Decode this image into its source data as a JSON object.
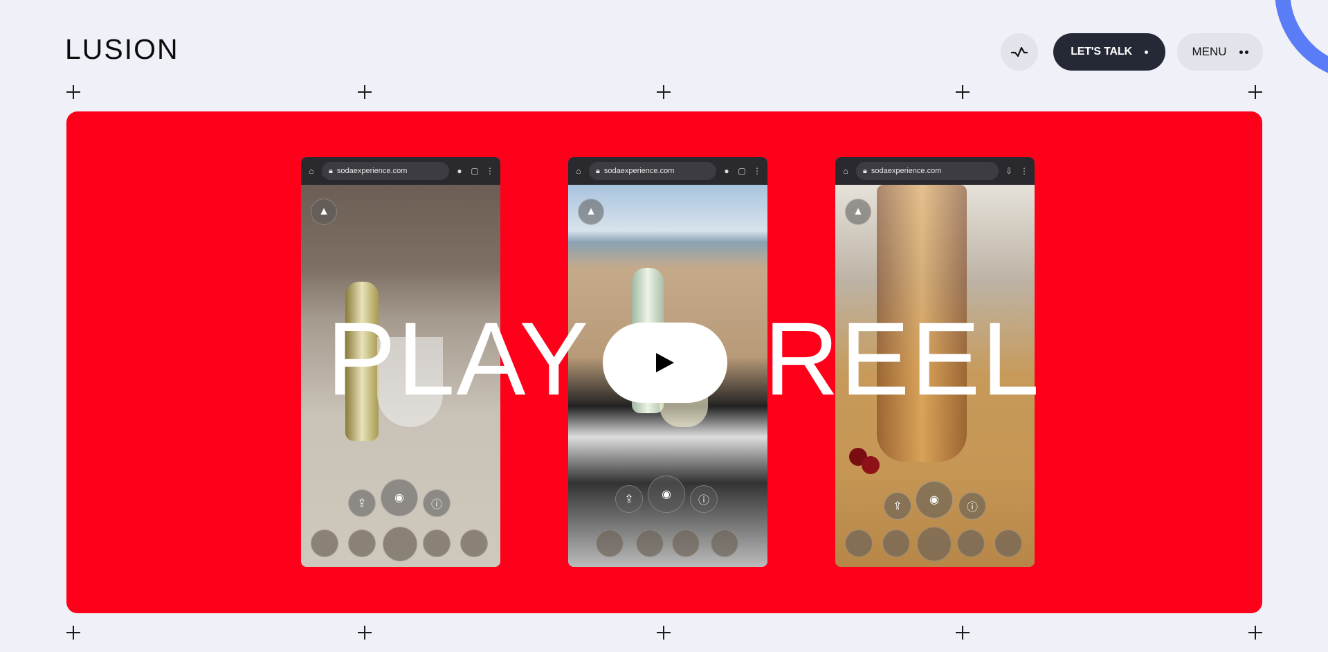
{
  "header": {
    "logo": "LUSION",
    "sound_icon": "sound-wave-icon",
    "talk_label": "LET'S TALK",
    "menu_label": "MENU"
  },
  "reel": {
    "word_left": "PLAY",
    "word_right": "REEL",
    "play_icon": "play-icon",
    "phones": [
      {
        "url": "sodaexperience.com"
      },
      {
        "url": "sodaexperience.com"
      },
      {
        "url": "sodaexperience.com"
      }
    ]
  },
  "colors": {
    "background": "#eff0f8",
    "reel_red": "#ff001b",
    "dark_button": "#252835",
    "light_button": "#e2e4ec",
    "accent_blue": "#5b7cf7"
  }
}
